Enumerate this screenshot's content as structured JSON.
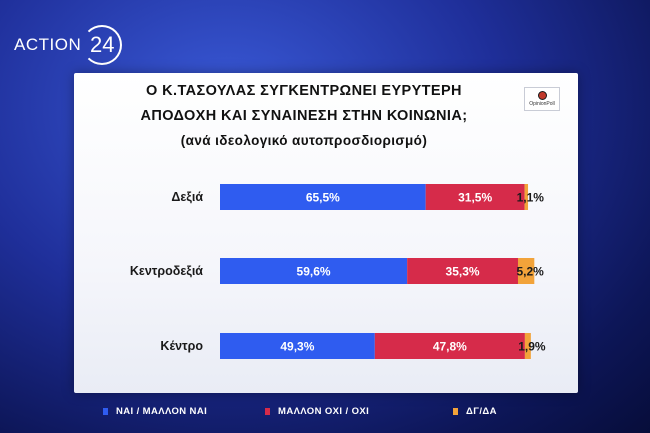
{
  "brand": {
    "text": "ACTION",
    "number": "24"
  },
  "logo": {
    "text": "OpinionPoll"
  },
  "colors": {
    "yes": "#2f5cf0",
    "no": "#d62b4a",
    "dk": "#f2a33a"
  },
  "chart_data": {
    "type": "bar",
    "orientation": "horizontal",
    "stacked": true,
    "title": "Ο Κ.ΤΑΣΟΥΛΑΣ ΣΥΓΚΕΝΤΡΩΝΕΙ ΕΥΡΥΤΕΡΗ ΑΠΟΔΟΧΗ ΚΑΙ ΣΥΝΑΙΝΕΣΗ ΣΤΗΝ ΚΟΙΝΩΝΙΑ;",
    "title_lines": [
      "Ο Κ.ΤΑΣΟΥΛΑΣ ΣΥΓΚΕΝΤΡΩΝΕΙ ΕΥΡΥΤΕΡΗ",
      "ΑΠΟΔΟΧΗ ΚΑΙ ΣΥΝΑΙΝΕΣΗ ΣΤΗΝ ΚΟΙΝΩΝΙΑ;"
    ],
    "subtitle": "(ανά ιδεολογικό αυτοπροσδιορισμό)",
    "categories": [
      "Δεξιά",
      "Κεντροδεξιά",
      "Κέντρο"
    ],
    "series": [
      {
        "name": "ΝΑΙ / ΜΑΛΛΟΝ ΝΑΙ",
        "values": [
          65.5,
          59.6,
          49.3
        ],
        "labels": [
          "65,5%",
          "59,6%",
          "49,3%"
        ]
      },
      {
        "name": "ΜΑΛΛΟΝ ΟΧΙ / ΟΧΙ",
        "values": [
          31.5,
          35.3,
          47.8
        ],
        "labels": [
          "31,5%",
          "35,3%",
          "47,8%"
        ]
      },
      {
        "name": "ΔΓ/ΔΑ",
        "values": [
          1.1,
          5.2,
          1.9
        ],
        "labels": [
          "1,1%",
          "5,2%",
          "1,9%"
        ]
      }
    ],
    "xlim": [
      0,
      100
    ],
    "grid": false,
    "legend_position": "bottom"
  }
}
